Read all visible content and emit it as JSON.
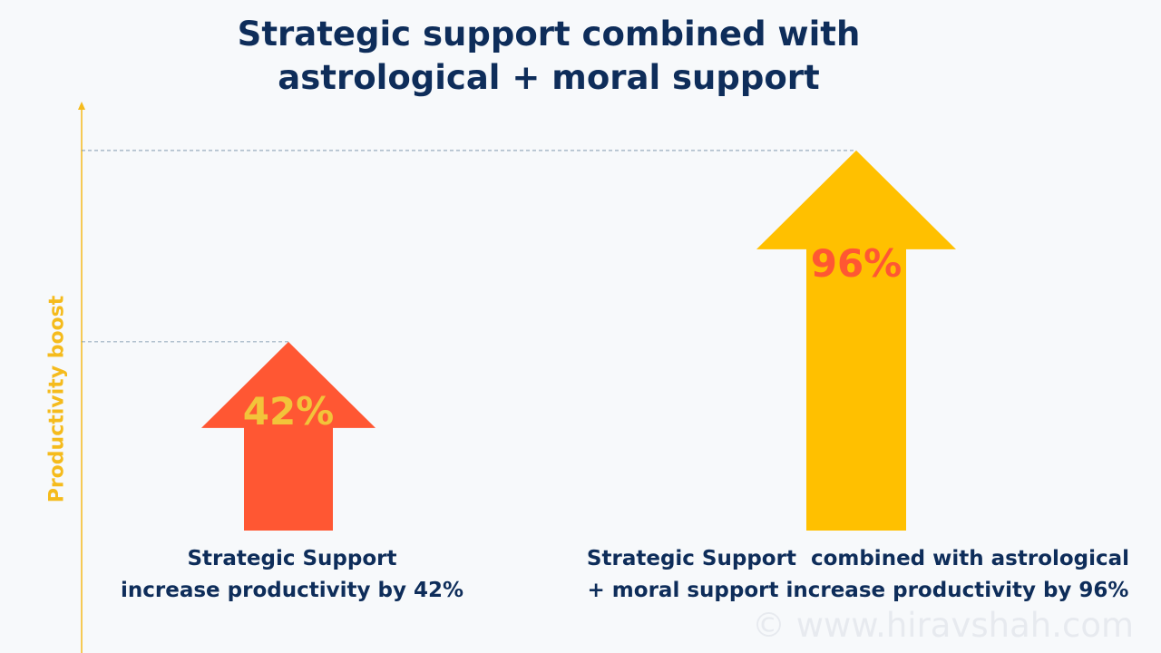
{
  "title_lines": [
    "Strategic support combined with",
    "astrological +  moral support"
  ],
  "watermark": "© www.hiravshah.com",
  "chart_data": {
    "type": "bar",
    "style": "arrows",
    "ylabel": "Productivity boost",
    "categories": [
      "Strategic Support\nincrease productivity by 42%",
      "Strategic Support  combined with astrological\n+ moral support increase productivity by 96%"
    ],
    "values": [
      42,
      96
    ],
    "data_labels": [
      "42%",
      "96%"
    ],
    "colors": [
      "#ff5733",
      "#ffc000"
    ],
    "label_colors": [
      "#f2c43a",
      "#ff5733"
    ],
    "axis_color": "#f5bb1c",
    "guide_lines": "dashed",
    "grid": false
  }
}
